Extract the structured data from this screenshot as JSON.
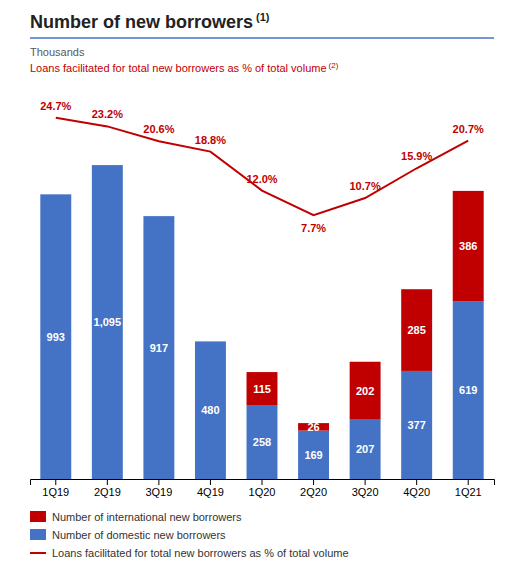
{
  "chart_data": {
    "type": "bar",
    "stacked": true,
    "data_labels": true,
    "tick_labels": "x",
    "legend": "lower left",
    "title": "Number of new borrowers",
    "title_superscript": "(1)",
    "ylabel": "Thousands",
    "y2label": "Loans facilitated for total new borrowers as % of total volume",
    "y2label_superscript": "(2)",
    "categories": [
      "1Q19",
      "2Q19",
      "3Q19",
      "4Q19",
      "1Q20",
      "2Q20",
      "3Q20",
      "4Q20",
      "1Q21"
    ],
    "ylim": [
      0,
      1350
    ],
    "y2lim": [
      -38.3,
      29.2
    ],
    "series": [
      {
        "name": "Number of domestic new borrowers",
        "type": "bar",
        "color": "#4472C4",
        "values": [
          993,
          1095,
          917,
          480,
          258,
          169,
          207,
          377,
          619
        ],
        "value_labels": [
          "993",
          "1,095",
          "917",
          "480",
          "258",
          "169",
          "207",
          "377",
          "619"
        ]
      },
      {
        "name": "Number of international new borrowers",
        "type": "bar",
        "color": "#C00000",
        "values": [
          0,
          0,
          0,
          0,
          115,
          26,
          202,
          285,
          386
        ],
        "value_labels": [
          null,
          null,
          null,
          null,
          "115",
          "26",
          "202",
          "285",
          "386"
        ]
      },
      {
        "name": "Loans facilitated for total new borrowers as % of total volume",
        "type": "line",
        "axis": "y2",
        "color": "#C00000",
        "values": [
          24.7,
          23.2,
          20.6,
          18.8,
          12.0,
          7.7,
          10.7,
          15.9,
          20.7
        ],
        "value_labels": [
          "24.7%",
          "23.2%",
          "20.6%",
          "18.8%",
          "12.0%",
          "7.7%",
          "10.7%",
          "15.9%",
          "20.7%"
        ]
      }
    ]
  }
}
